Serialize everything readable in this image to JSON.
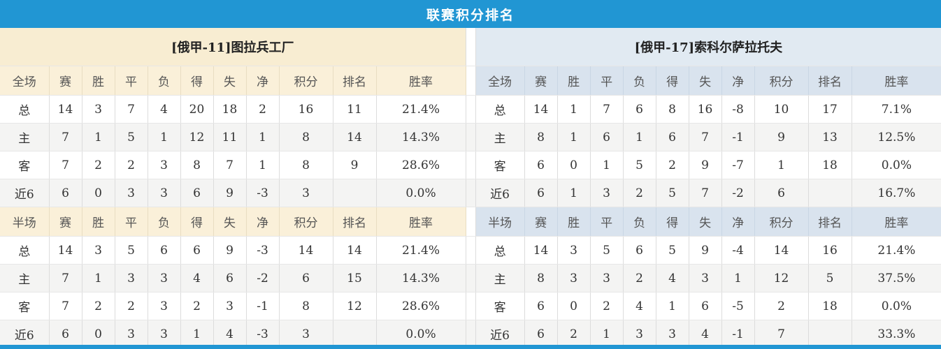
{
  "title": "联赛积分排名",
  "colors": {
    "bar_blue": "#2196d3",
    "left_team_bg": "#f8edd2",
    "left_header_bg": "#faf0d9",
    "right_team_bg": "#e1eaf2",
    "right_header_bg": "#d9e3ee",
    "value_red": "#e23a2e",
    "rank_blue": "#3a7cc4",
    "home_label_red": "#c8455a",
    "away_label_blue": "#5f5fd3"
  },
  "columns": [
    "赛",
    "胜",
    "平",
    "负",
    "得",
    "失",
    "净",
    "积分",
    "排名",
    "胜率"
  ],
  "tables": [
    {
      "team": "[俄甲-11]图拉兵工厂",
      "sections": [
        {
          "label": "全场",
          "rows": [
            {
              "label": "总",
              "type": "plain",
              "cells": [
                "14",
                "3",
                "7",
                "4",
                "20",
                "18",
                "2"
              ],
              "points": "16",
              "rank": "11",
              "rate": "21.4%"
            },
            {
              "label": "主",
              "type": "home",
              "cells": [
                "7",
                "1",
                "5",
                "1",
                "12",
                "11",
                "1"
              ],
              "points": "8",
              "rank": "14",
              "rate": "14.3%"
            },
            {
              "label": "客",
              "type": "away",
              "cells": [
                "7",
                "2",
                "2",
                "3",
                "8",
                "7",
                "1"
              ],
              "points": "8",
              "rank": "9",
              "rate": "28.6%"
            },
            {
              "label": "近6",
              "type": "plain",
              "cells": [
                "6",
                "0",
                "3",
                "3",
                "6",
                "9",
                "-3"
              ],
              "points": "3",
              "rank": "",
              "rate": "0.0%"
            }
          ]
        },
        {
          "label": "半场",
          "rows": [
            {
              "label": "总",
              "type": "plain",
              "cells": [
                "14",
                "3",
                "5",
                "6",
                "6",
                "9",
                "-3"
              ],
              "points": "14",
              "rank": "14",
              "rate": "21.4%"
            },
            {
              "label": "主",
              "type": "home",
              "cells": [
                "7",
                "1",
                "3",
                "3",
                "4",
                "6",
                "-2"
              ],
              "points": "6",
              "rank": "15",
              "rate": "14.3%"
            },
            {
              "label": "客",
              "type": "away",
              "cells": [
                "7",
                "2",
                "2",
                "3",
                "2",
                "3",
                "-1"
              ],
              "points": "8",
              "rank": "12",
              "rate": "28.6%"
            },
            {
              "label": "近6",
              "type": "plain",
              "cells": [
                "6",
                "0",
                "3",
                "3",
                "1",
                "4",
                "-3"
              ],
              "points": "3",
              "rank": "",
              "rate": "0.0%"
            }
          ]
        }
      ]
    },
    {
      "team": "[俄甲-17]索科尔萨拉托夫",
      "sections": [
        {
          "label": "全场",
          "rows": [
            {
              "label": "总",
              "type": "plain",
              "cells": [
                "14",
                "1",
                "7",
                "6",
                "8",
                "16",
                "-8"
              ],
              "points": "10",
              "rank": "17",
              "rate": "7.1%"
            },
            {
              "label": "主",
              "type": "home",
              "cells": [
                "8",
                "1",
                "6",
                "1",
                "6",
                "7",
                "-1"
              ],
              "points": "9",
              "rank": "13",
              "rate": "12.5%"
            },
            {
              "label": "客",
              "type": "away",
              "cells": [
                "6",
                "0",
                "1",
                "5",
                "2",
                "9",
                "-7"
              ],
              "points": "1",
              "rank": "18",
              "rate": "0.0%"
            },
            {
              "label": "近6",
              "type": "plain",
              "cells": [
                "6",
                "1",
                "3",
                "2",
                "5",
                "7",
                "-2"
              ],
              "points": "6",
              "rank": "",
              "rate": "16.7%"
            }
          ]
        },
        {
          "label": "半场",
          "rows": [
            {
              "label": "总",
              "type": "plain",
              "cells": [
                "14",
                "3",
                "5",
                "6",
                "5",
                "9",
                "-4"
              ],
              "points": "14",
              "rank": "16",
              "rate": "21.4%"
            },
            {
              "label": "主",
              "type": "home",
              "cells": [
                "8",
                "3",
                "3",
                "2",
                "4",
                "3",
                "1"
              ],
              "points": "12",
              "rank": "5",
              "rate": "37.5%"
            },
            {
              "label": "客",
              "type": "away",
              "cells": [
                "6",
                "0",
                "2",
                "4",
                "1",
                "6",
                "-5"
              ],
              "points": "2",
              "rank": "18",
              "rate": "0.0%"
            },
            {
              "label": "近6",
              "type": "plain",
              "cells": [
                "6",
                "2",
                "1",
                "3",
                "3",
                "4",
                "-1"
              ],
              "points": "7",
              "rank": "",
              "rate": "33.3%"
            }
          ]
        }
      ]
    }
  ]
}
